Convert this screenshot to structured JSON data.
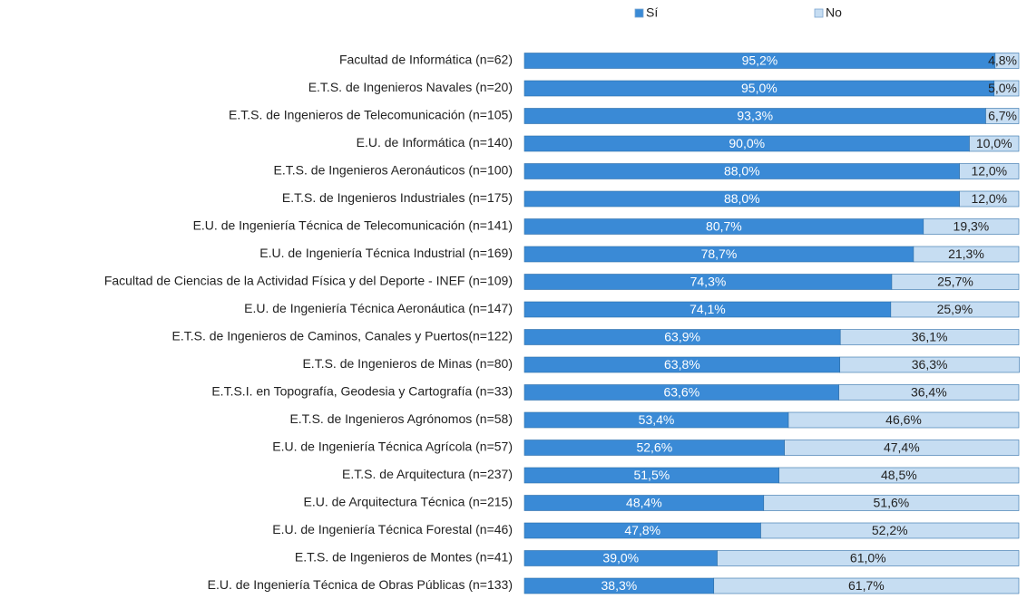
{
  "chart_data": {
    "type": "stacked_bar_horizontal",
    "categories": [
      "Facultad de Informática (n=62)",
      "E.T.S. de Ingenieros Navales (n=20)",
      "E.T.S. de Ingenieros de Telecomunicación (n=105)",
      "E.U. de Informática (n=140)",
      "E.T.S. de Ingenieros Aeronáuticos (n=100)",
      "E.T.S. de Ingenieros Industriales (n=175)",
      "E.U. de Ingeniería Técnica de Telecomunicación (n=141)",
      "E.U. de Ingeniería Técnica Industrial (n=169)",
      "Facultad de Ciencias de la Actividad Física y del Deporte - INEF (n=109)",
      "E.U. de Ingeniería Técnica Aeronáutica (n=147)",
      "E.T.S. de Ingenieros de Caminos, Canales y Puertos(n=122)",
      "E.T.S. de Ingenieros de Minas (n=80)",
      "E.T.S.I. en Topografía, Geodesia y Cartografía (n=33)",
      "E.T.S. de Ingenieros Agrónomos (n=58)",
      "E.U. de Ingeniería Técnica Agrícola (n=57)",
      "E.T.S. de Arquitectura (n=237)",
      "E.U. de Arquitectura Técnica (n=215)",
      "E.U. de Ingeniería Técnica Forestal (n=46)",
      "E.T.S. de Ingenieros de Montes (n=41)",
      "E.U. de Ingeniería Técnica de Obras Públicas (n=133)"
    ],
    "series": [
      {
        "name": "Sí",
        "color": "#3a8ad6",
        "label_color": "#ffffff",
        "values": [
          95.2,
          95.0,
          93.3,
          90.0,
          88.0,
          88.0,
          80.7,
          78.7,
          74.3,
          74.1,
          63.9,
          63.8,
          63.6,
          53.4,
          52.6,
          51.5,
          48.4,
          47.8,
          39.0,
          38.3
        ],
        "value_labels": [
          "95,2%",
          "95,0%",
          "93,3%",
          "90,0%",
          "88,0%",
          "88,0%",
          "80,7%",
          "78,7%",
          "74,3%",
          "74,1%",
          "63,9%",
          "63,8%",
          "63,6%",
          "53,4%",
          "52,6%",
          "51,5%",
          "48,4%",
          "47,8%",
          "39,0%",
          "38,3%"
        ]
      },
      {
        "name": "No",
        "color": "#c6ddf2",
        "label_color": "#222222",
        "values": [
          4.8,
          5.0,
          6.7,
          10.0,
          12.0,
          12.0,
          19.3,
          21.3,
          25.7,
          25.9,
          36.1,
          36.3,
          36.4,
          46.6,
          47.4,
          48.5,
          51.6,
          52.2,
          61.0,
          61.7
        ],
        "value_labels": [
          "4,8%",
          "5,0%",
          "6,7%",
          "10,0%",
          "12,0%",
          "12,0%",
          "19,3%",
          "21,3%",
          "25,7%",
          "25,9%",
          "36,1%",
          "36,3%",
          "36,4%",
          "46,6%",
          "47,4%",
          "48,5%",
          "51,6%",
          "52,2%",
          "61,0%",
          "61,7%"
        ]
      }
    ],
    "xlim": [
      0,
      100
    ]
  }
}
